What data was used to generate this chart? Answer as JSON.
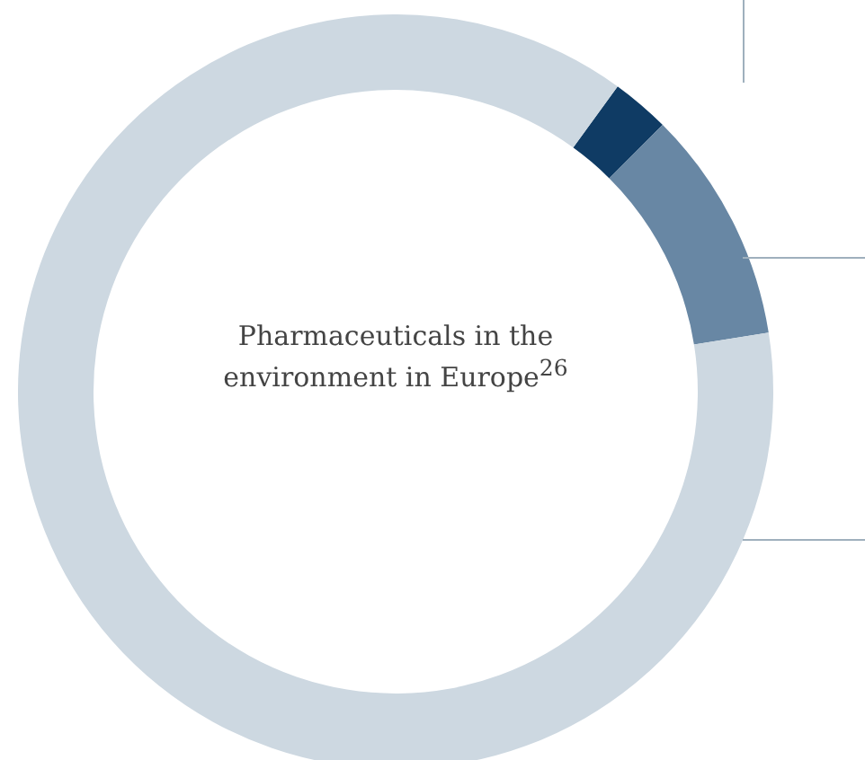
{
  "chart_data": {
    "type": "donut",
    "title": "Pharmaceuticals in the environment in Europe$^{26}$",
    "categories": [
      null,
      null,
      null
    ],
    "values": [
      2.5,
      10,
      87.5
    ],
    "colors": [
      "#0f3b64",
      "#6887a4",
      "#cdd8e1"
    ],
    "legend": false
  }
}
